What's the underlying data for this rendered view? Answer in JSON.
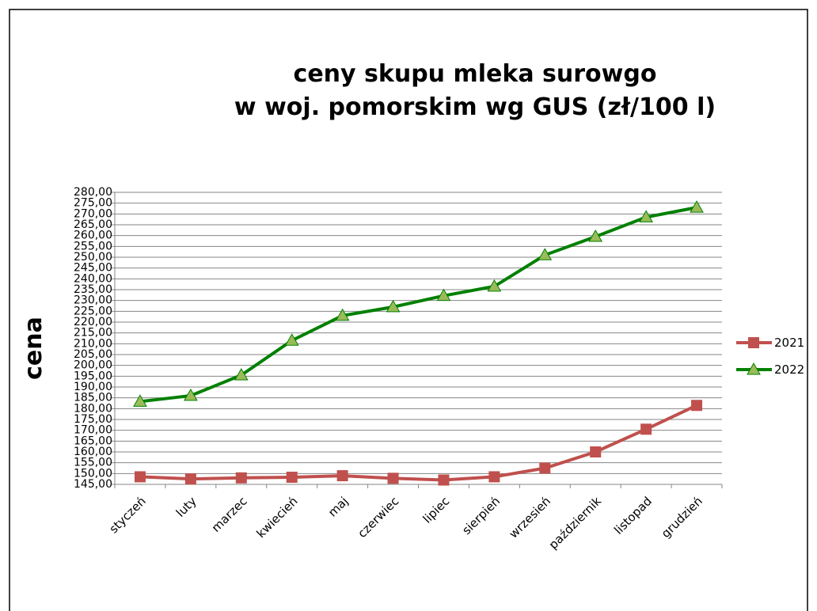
{
  "chart_data": {
    "type": "line",
    "title": "ceny skupu mleka surowgo\nw woj. pomorskim wg GUS (zł/100 l)",
    "y_label": "cena",
    "categories": [
      "styczeń",
      "luty",
      "marzec",
      "kwiecień",
      "maj",
      "czerwiec",
      "lipiec",
      "sierpień",
      "wrzesień",
      "październik",
      "listopad",
      "grudzień"
    ],
    "series": [
      {
        "name": "2021",
        "color": "#c0504d",
        "marker": "square",
        "values": [
          148.5,
          147.5,
          148,
          148.3,
          149,
          147.8,
          147,
          148.5,
          152.5,
          160,
          170.5,
          181.5
        ]
      },
      {
        "name": "2022",
        "color": "#008000",
        "marker_color": "#9bbb59",
        "marker": "triangle",
        "values": [
          183.3,
          186,
          195.5,
          211.5,
          223,
          227,
          232.2,
          236.5,
          251,
          259.5,
          268.5,
          273
        ]
      }
    ],
    "ylim": [
      145,
      280
    ],
    "yticks": [
      {
        "value": 145,
        "label": "145,00"
      },
      {
        "value": 150,
        "label": "150,00"
      },
      {
        "value": 155,
        "label": "155,00"
      },
      {
        "value": 160,
        "label": "160,00"
      },
      {
        "value": 165,
        "label": "165,00"
      },
      {
        "value": 170,
        "label": "170,00"
      },
      {
        "value": 175,
        "label": "175,00"
      },
      {
        "value": 180,
        "label": "180,00"
      },
      {
        "value": 185,
        "label": "185,00"
      },
      {
        "value": 190,
        "label": "190,00"
      },
      {
        "value": 195,
        "label": "195,00"
      },
      {
        "value": 200,
        "label": "200,00"
      },
      {
        "value": 205,
        "label": "205,00"
      },
      {
        "value": 210,
        "label": "210,00"
      },
      {
        "value": 215,
        "label": "215,00"
      },
      {
        "value": 220,
        "label": "220,00"
      },
      {
        "value": 225,
        "label": "225,00"
      },
      {
        "value": 230,
        "label": "230,00"
      },
      {
        "value": 235,
        "label": "235,00"
      },
      {
        "value": 240,
        "label": "240,00"
      },
      {
        "value": 245,
        "label": "245,00"
      },
      {
        "value": 250,
        "label": "250,00"
      },
      {
        "value": 255,
        "label": "255,00"
      },
      {
        "value": 260,
        "label": "260,00"
      },
      {
        "value": 265,
        "label": "265,00"
      },
      {
        "value": 270,
        "label": "270,00"
      },
      {
        "value": 275,
        "label": "275,00"
      },
      {
        "value": 280,
        "label": "280,00"
      }
    ],
    "grid": true,
    "legend": "right"
  }
}
